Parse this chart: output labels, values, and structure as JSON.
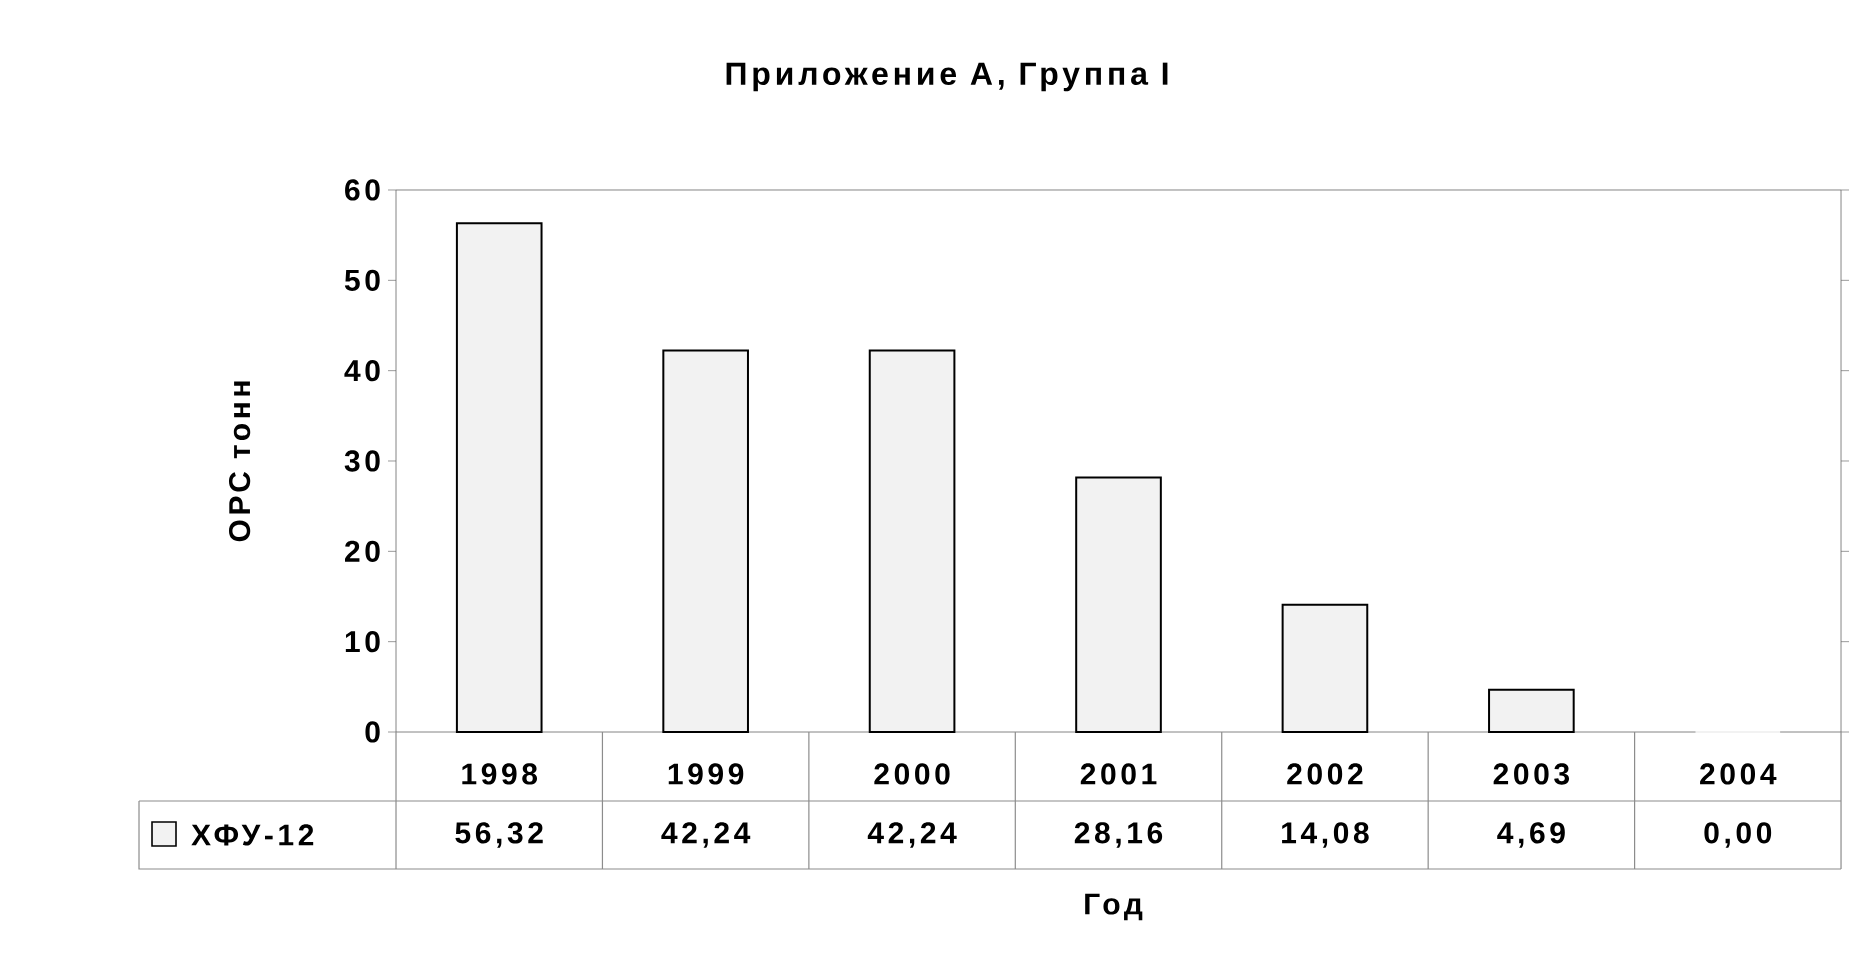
{
  "chart_data": {
    "type": "bar",
    "title": "Приложение А, Группа I",
    "xlabel": "Год",
    "ylabel": "ОРС тонн",
    "categories": [
      "1998",
      "1999",
      "2000",
      "2001",
      "2002",
      "2003",
      "2004"
    ],
    "series": [
      {
        "name": "ХФУ-12",
        "color": "#f2f2f2",
        "values": [
          56.32,
          42.24,
          42.24,
          28.16,
          14.08,
          4.69,
          0.0
        ],
        "value_labels": [
          "56,32",
          "42,24",
          "42,24",
          "28,16",
          "14,08",
          "4,69",
          "0,00"
        ]
      }
    ],
    "ylim": [
      0,
      60
    ],
    "yticks": [
      0,
      10,
      20,
      30,
      40,
      50,
      60
    ],
    "legend": "bottom"
  }
}
